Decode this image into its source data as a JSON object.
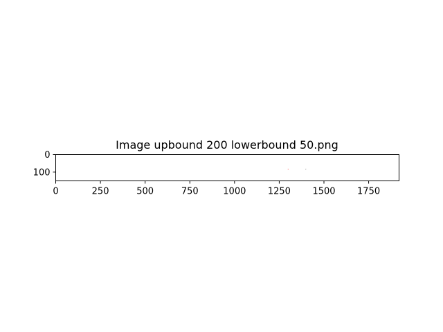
{
  "chart_data": {
    "type": "heatmap",
    "title": "Image upbound 200 lowerbound 50.png",
    "xlabel": "",
    "ylabel": "",
    "image_size": [
      1920,
      150
    ],
    "xlim": [
      0,
      1920
    ],
    "ylim": [
      150,
      0
    ],
    "y_axis_inverted": true,
    "x_ticks": [
      0,
      250,
      500,
      750,
      1000,
      1250,
      1500,
      1750
    ],
    "y_ticks": [
      0,
      100
    ],
    "grid": false,
    "background": "#ffffff",
    "points": [
      {
        "x": 1300,
        "y": 83,
        "color": "#ff9999"
      },
      {
        "x": 1398,
        "y": 83,
        "color": "#bbbbbb"
      }
    ]
  }
}
